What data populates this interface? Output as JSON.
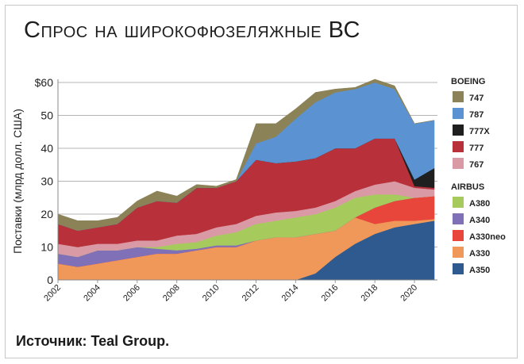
{
  "title": "Спрос на широкофюзеляжные ВС",
  "source": "Источник: Teal Group.",
  "colors": {
    "747": "#8b8257",
    "787": "#5b93d2",
    "777X": "#1f1f1f",
    "777": "#b8313a",
    "767": "#d99aa6",
    "A380": "#a6cb5c",
    "A340": "#8070b8",
    "A330neo": "#e8463a",
    "A330": "#f0975a",
    "A350": "#2e5a8f"
  },
  "chart_data": {
    "type": "area",
    "stacked": true,
    "ylabel": "Поставки (млрд долл. США)",
    "ylim": [
      0,
      60
    ],
    "yticks": [
      "0",
      "10",
      "20",
      "30",
      "40",
      "50",
      "$60"
    ],
    "xticks": [
      "2002",
      "2004",
      "2006",
      "2008",
      "2010",
      "2012",
      "2014",
      "2016",
      "2018",
      "2020"
    ],
    "x": [
      2002,
      2003,
      2004,
      2005,
      2006,
      2007,
      2008,
      2009,
      2010,
      2011,
      2012,
      2013,
      2014,
      2015,
      2016,
      2017,
      2018,
      2019,
      2020,
      2021
    ],
    "series": [
      {
        "name": "A350",
        "values": [
          0,
          0,
          0,
          0,
          0,
          0,
          0,
          0,
          0,
          0,
          0,
          0,
          0,
          2,
          7,
          11,
          14,
          16,
          17,
          18
        ]
      },
      {
        "name": "A330",
        "values": [
          5,
          4,
          5,
          6,
          7,
          8,
          8,
          9,
          10,
          10,
          12,
          13,
          13,
          12,
          8,
          8,
          3,
          2,
          1,
          0.5
        ]
      },
      {
        "name": "A330neo",
        "values": [
          0,
          0,
          0,
          0,
          0,
          0,
          0,
          0,
          0,
          0,
          0,
          0,
          0,
          0,
          0,
          0,
          5,
          6,
          7,
          7
        ]
      },
      {
        "name": "A340",
        "values": [
          3,
          3,
          4,
          3,
          3,
          1.5,
          1,
          0.5,
          0.5,
          0.5,
          0,
          0,
          0,
          0,
          0,
          0,
          0,
          0,
          0,
          0
        ]
      },
      {
        "name": "A380",
        "values": [
          0,
          0,
          0,
          0,
          0,
          0.5,
          2,
          2,
          3,
          4,
          5,
          5,
          6,
          6,
          7,
          6,
          4,
          2,
          0,
          0
        ]
      },
      {
        "name": "767",
        "values": [
          3,
          3,
          2,
          2,
          2,
          2,
          2.5,
          2.5,
          2.5,
          2.5,
          2.5,
          2.5,
          2,
          2,
          2,
          2,
          3,
          4,
          3,
          2
        ]
      },
      {
        "name": "777",
        "values": [
          6,
          5,
          5,
          6,
          10,
          12,
          10,
          14,
          12,
          13,
          17,
          15,
          15,
          15,
          16,
          13,
          14,
          13,
          0.5,
          0.5
        ]
      },
      {
        "name": "777X",
        "values": [
          0,
          0,
          0,
          0,
          0,
          0,
          0,
          0,
          0,
          0,
          0,
          0,
          0,
          0,
          0,
          0,
          0,
          0,
          2,
          6
        ]
      },
      {
        "name": "787",
        "values": [
          0,
          0,
          0,
          0,
          0,
          0,
          0,
          0,
          0,
          0,
          5,
          8,
          13,
          17,
          17,
          18,
          17,
          15,
          17,
          14.5
        ]
      },
      {
        "name": "747",
        "values": [
          3,
          3,
          2,
          2,
          2,
          3,
          2,
          1,
          0.5,
          0.5,
          6,
          4,
          3,
          3,
          1,
          0.5,
          1,
          1,
          0,
          0
        ]
      }
    ],
    "legend": {
      "position": "right",
      "groups": [
        {
          "label": "BOEING",
          "items": [
            "747",
            "787",
            "777X",
            "777",
            "767"
          ]
        },
        {
          "label": "AIRBUS",
          "items": [
            "A380",
            "A340",
            "A330neo",
            "A330",
            "A350"
          ]
        }
      ]
    },
    "grid": true
  }
}
